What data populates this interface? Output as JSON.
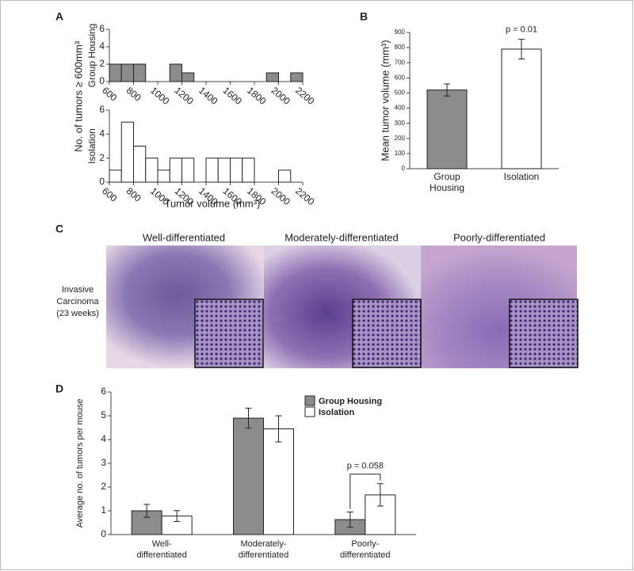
{
  "panel_labels": [
    "A",
    "B",
    "C",
    "D"
  ],
  "figure_c": {
    "titles": [
      "Well-differentiated",
      "Moderately-differentiated",
      "Poorly-differentiated"
    ],
    "row_label": [
      "Invasive",
      "Carcinoma",
      "(23 weeks)"
    ]
  },
  "chart_data": [
    {
      "type": "histogram",
      "label": "Group Housing",
      "ylabel": "No. of tumors ≥ 600mm³",
      "bins": [
        600,
        700,
        800,
        900,
        1000,
        1100,
        1200,
        1300,
        1400,
        1500,
        1600,
        1700,
        1800,
        1900,
        2000,
        2100,
        2200
      ],
      "values": [
        2,
        2,
        2,
        0,
        0,
        2,
        1,
        0,
        0,
        0,
        0,
        0,
        0,
        1,
        0,
        1
      ],
      "color": "#8c8c8c",
      "xlim": [
        600,
        2200
      ],
      "xticks": [
        600,
        800,
        1000,
        1200,
        1400,
        1600,
        1800,
        2000,
        2200
      ],
      "ylim": [
        0,
        6
      ],
      "yticks": [
        0,
        2,
        4,
        6
      ]
    },
    {
      "type": "histogram",
      "label": "Isolation",
      "xlabel": "Tumor volume (mm³)",
      "bins": [
        600,
        700,
        800,
        900,
        1000,
        1100,
        1200,
        1300,
        1400,
        1500,
        1600,
        1700,
        1800,
        1900,
        2000,
        2100,
        2200
      ],
      "values": [
        1,
        5,
        3,
        2,
        1,
        2,
        2,
        0,
        2,
        2,
        2,
        2,
        0,
        0,
        1,
        0
      ],
      "color": "#ffffff",
      "xlim": [
        600,
        2200
      ],
      "xticks": [
        600,
        800,
        1000,
        1200,
        1400,
        1600,
        1800,
        2000,
        2200
      ],
      "ylim": [
        0,
        6
      ],
      "yticks": [
        0,
        2,
        4,
        6
      ]
    },
    {
      "type": "bar",
      "ylabel": "Mean tumor volume (mm³)",
      "categories": [
        [
          "Group",
          "Housing"
        ],
        [
          "Isolation"
        ]
      ],
      "values": [
        520,
        790
      ],
      "errors": [
        40,
        65
      ],
      "colors": [
        "#8c8c8c",
        "#ffffff"
      ],
      "annotation": "p = 0.01",
      "ylim": [
        0,
        900
      ],
      "yticks": [
        0,
        100,
        200,
        300,
        400,
        500,
        600,
        700,
        800,
        900
      ]
    },
    {
      "type": "grouped_bar",
      "ylabel": "Average no. of tumors per mouse",
      "categories": [
        [
          "Well-",
          "differentiated"
        ],
        [
          "Moderately-",
          "differentiated"
        ],
        [
          "Poorly-",
          "differentiated"
        ]
      ],
      "series": [
        {
          "name": "Group Housing",
          "color": "#8c8c8c",
          "values": [
            1.0,
            4.9,
            0.63
          ],
          "errors": [
            0.27,
            0.42,
            0.32
          ]
        },
        {
          "name": "Isolation",
          "color": "#ffffff",
          "values": [
            0.78,
            4.45,
            1.67
          ],
          "errors": [
            0.23,
            0.55,
            0.47
          ]
        }
      ],
      "annotation": "p = 0.058",
      "ylim": [
        0,
        6
      ],
      "yticks": [
        0,
        1,
        2,
        3,
        4,
        5,
        6
      ]
    }
  ]
}
